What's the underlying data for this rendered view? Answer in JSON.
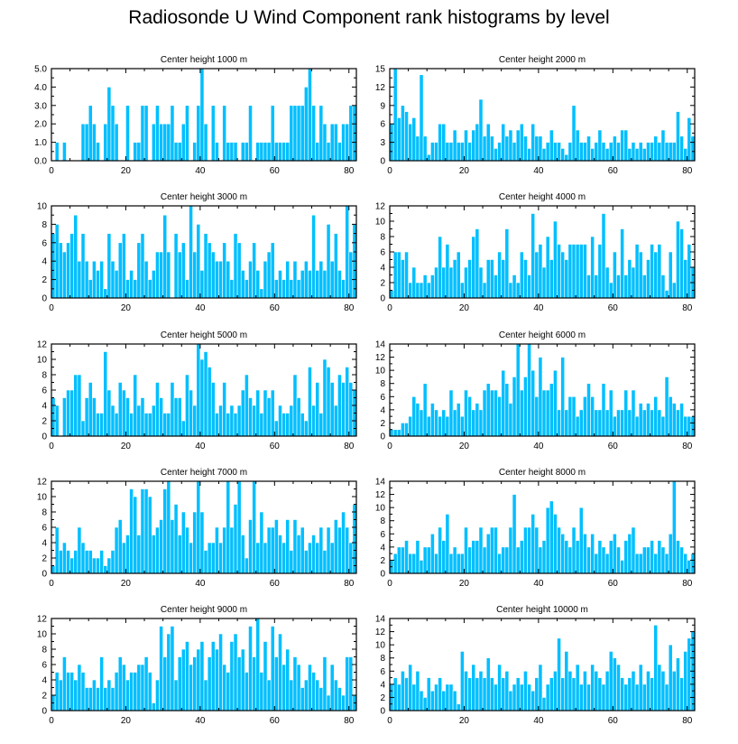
{
  "title": "Radiosonde U Wind Component rank histograms by level",
  "colors": {
    "bar": "#00bfff",
    "bar_edge": "#ffffff",
    "axis": "#000000"
  },
  "chart_data": [
    {
      "type": "bar",
      "title": "Center height 1000 m",
      "xlim": [
        0,
        82
      ],
      "ylim": [
        0,
        5
      ],
      "xticks": [
        0,
        20,
        40,
        60,
        80
      ],
      "yticks": [
        0,
        1,
        2,
        3,
        4,
        5
      ],
      "yticklabels": [
        "0.0",
        "1.0",
        "2.0",
        "3.0",
        "4.0",
        "5.0"
      ],
      "values": [
        0,
        1,
        0,
        1,
        0,
        0,
        0,
        0,
        2,
        2,
        3,
        2,
        1,
        0,
        2,
        4,
        3,
        2,
        0,
        0,
        3,
        0,
        1,
        1,
        3,
        3,
        0,
        2,
        3,
        2,
        2,
        2,
        3,
        1,
        1,
        2,
        3,
        0,
        1,
        3,
        5,
        2,
        0,
        3,
        1,
        0,
        3,
        1,
        1,
        1,
        0,
        1,
        1,
        3,
        0,
        1,
        1,
        1,
        1,
        3,
        1,
        1,
        1,
        1,
        3,
        3,
        3,
        3,
        4,
        5,
        3,
        1,
        3,
        2,
        1,
        2,
        2,
        1,
        2,
        2,
        3,
        3
      ]
    },
    {
      "type": "bar",
      "title": "Center height 2000 m",
      "xlim": [
        0,
        82
      ],
      "ylim": [
        0,
        15
      ],
      "xticks": [
        0,
        20,
        40,
        60,
        80
      ],
      "yticks": [
        0,
        3,
        6,
        9,
        12,
        15
      ],
      "yticklabels": [
        "0",
        "3",
        "6",
        "9",
        "12",
        "15"
      ],
      "values": [
        6,
        15,
        7,
        9,
        8,
        6,
        7,
        4,
        14,
        4,
        1,
        3,
        3,
        6,
        6,
        3,
        3,
        5,
        3,
        3,
        5,
        3,
        5,
        6,
        10,
        4,
        6,
        4,
        2,
        3,
        6,
        4,
        5,
        3,
        5,
        6,
        4,
        2,
        6,
        4,
        4,
        2,
        3,
        5,
        3,
        3,
        2,
        1,
        3,
        9,
        5,
        3,
        3,
        4,
        2,
        3,
        5,
        3,
        2,
        3,
        4,
        3,
        5,
        5,
        2,
        3,
        2,
        3,
        2,
        3,
        3,
        4,
        3,
        5,
        3,
        3,
        3,
        8,
        4,
        2,
        7,
        4
      ]
    },
    {
      "type": "bar",
      "title": "Center height 3000 m",
      "xlim": [
        0,
        82
      ],
      "ylim": [
        0,
        10
      ],
      "xticks": [
        0,
        20,
        40,
        60,
        80
      ],
      "yticks": [
        0,
        2,
        4,
        6,
        8,
        10
      ],
      "yticklabels": [
        "0",
        "2",
        "4",
        "6",
        "8",
        "10"
      ],
      "values": [
        7,
        8,
        6,
        5,
        6,
        7,
        9,
        4,
        7,
        4,
        2,
        4,
        3,
        4,
        1,
        7,
        4,
        3,
        6,
        7,
        2,
        3,
        2,
        6,
        7,
        4,
        2,
        3,
        5,
        5,
        9,
        5,
        0,
        7,
        5,
        6,
        2,
        10,
        5,
        8,
        3,
        7,
        6,
        5,
        4,
        4,
        6,
        4,
        2,
        7,
        6,
        3,
        2,
        4,
        6,
        3,
        1,
        4,
        5,
        6,
        2,
        3,
        2,
        4,
        2,
        4,
        2,
        3,
        4,
        3,
        9,
        3,
        4,
        3,
        8,
        4,
        7,
        3,
        2,
        10,
        5,
        8
      ]
    },
    {
      "type": "bar",
      "title": "Center height 4000 m",
      "xlim": [
        0,
        82
      ],
      "ylim": [
        0,
        12
      ],
      "xticks": [
        0,
        20,
        40,
        60,
        80
      ],
      "yticks": [
        0,
        2,
        4,
        6,
        8,
        10,
        12
      ],
      "yticklabels": [
        "0",
        "2",
        "4",
        "6",
        "8",
        "10",
        "12"
      ],
      "values": [
        1,
        6,
        6,
        5,
        6,
        2,
        4,
        2,
        2,
        3,
        2,
        3,
        4,
        8,
        4,
        7,
        4,
        5,
        6,
        2,
        4,
        5,
        8,
        9,
        4,
        2,
        5,
        5,
        3,
        6,
        5,
        9,
        2,
        3,
        2,
        6,
        5,
        3,
        11,
        6,
        7,
        4,
        8,
        5,
        10,
        7,
        6,
        5,
        7,
        7,
        7,
        7,
        7,
        3,
        8,
        3,
        7,
        11,
        4,
        2,
        6,
        3,
        9,
        3,
        5,
        4,
        7,
        6,
        3,
        5,
        7,
        6,
        7,
        3,
        1,
        6,
        2,
        10,
        9,
        5,
        7,
        4
      ]
    },
    {
      "type": "bar",
      "title": "Center height 5000 m",
      "xlim": [
        0,
        82
      ],
      "ylim": [
        0,
        12
      ],
      "xticks": [
        0,
        20,
        40,
        60,
        80
      ],
      "yticks": [
        0,
        2,
        4,
        6,
        8,
        10,
        12
      ],
      "yticklabels": [
        "0",
        "2",
        "4",
        "6",
        "8",
        "10",
        "12"
      ],
      "values": [
        5,
        4,
        0,
        5,
        6,
        6,
        8,
        8,
        2,
        5,
        7,
        5,
        3,
        3,
        11,
        6,
        4,
        3,
        7,
        6,
        5,
        3,
        8,
        4,
        5,
        3,
        3,
        4,
        7,
        5,
        3,
        3,
        7,
        5,
        5,
        2,
        8,
        6,
        4,
        12,
        10,
        11,
        9,
        7,
        3,
        4,
        7,
        3,
        4,
        3,
        4,
        6,
        8,
        5,
        4,
        6,
        3,
        6,
        5,
        6,
        2,
        4,
        3,
        3,
        4,
        8,
        5,
        3,
        2,
        9,
        4,
        7,
        3,
        10,
        9,
        7,
        4,
        8,
        7,
        9,
        7,
        6
      ]
    },
    {
      "type": "bar",
      "title": "Center height 6000 m",
      "xlim": [
        0,
        82
      ],
      "ylim": [
        0,
        14
      ],
      "xticks": [
        0,
        20,
        40,
        60,
        80
      ],
      "yticks": [
        0,
        2,
        4,
        6,
        8,
        10,
        12,
        14
      ],
      "yticklabels": [
        "0",
        "2",
        "4",
        "6",
        "8",
        "10",
        "12",
        "14"
      ],
      "values": [
        1,
        1,
        1,
        2,
        2,
        3,
        6,
        5,
        4,
        8,
        3,
        5,
        4,
        3,
        4,
        3,
        7,
        4,
        5,
        3,
        7,
        6,
        4,
        5,
        4,
        7,
        8,
        7,
        7,
        6,
        10,
        8,
        5,
        9,
        14,
        7,
        9,
        14,
        10,
        6,
        12,
        7,
        7,
        8,
        10,
        4,
        12,
        4,
        6,
        6,
        3,
        4,
        6,
        8,
        6,
        4,
        4,
        8,
        4,
        7,
        3,
        4,
        4,
        7,
        4,
        7,
        3,
        5,
        4,
        5,
        4,
        6,
        4,
        3,
        9,
        6,
        5,
        4,
        5,
        3,
        3,
        3
      ]
    },
    {
      "type": "bar",
      "title": "Center height 7000 m",
      "xlim": [
        0,
        82
      ],
      "ylim": [
        0,
        12
      ],
      "xticks": [
        0,
        20,
        40,
        60,
        80
      ],
      "yticks": [
        0,
        2,
        4,
        6,
        8,
        10,
        12
      ],
      "yticklabels": [
        "0",
        "2",
        "4",
        "6",
        "8",
        "10",
        "12"
      ],
      "values": [
        1,
        6,
        3,
        4,
        3,
        2,
        3,
        6,
        4,
        3,
        3,
        2,
        2,
        3,
        1,
        2,
        3,
        6,
        7,
        4,
        5,
        11,
        10,
        5,
        11,
        11,
        10,
        5,
        6,
        7,
        11,
        12,
        7,
        9,
        5,
        8,
        6,
        4,
        8,
        12,
        8,
        3,
        4,
        4,
        6,
        4,
        6,
        12,
        6,
        9,
        12,
        5,
        2,
        7,
        12,
        4,
        8,
        4,
        6,
        6,
        7,
        5,
        4,
        7,
        3,
        7,
        5,
        6,
        3,
        4,
        5,
        4,
        6,
        3,
        6,
        4,
        7,
        6,
        8,
        6,
        4,
        9
      ]
    },
    {
      "type": "bar",
      "title": "Center height 8000 m",
      "xlim": [
        0,
        82
      ],
      "ylim": [
        0,
        14
      ],
      "xticks": [
        0,
        20,
        40,
        60,
        80
      ],
      "yticks": [
        0,
        2,
        4,
        6,
        8,
        10,
        12,
        14
      ],
      "yticklabels": [
        "0",
        "2",
        "4",
        "6",
        "8",
        "10",
        "12",
        "14"
      ],
      "values": [
        2,
        3,
        4,
        4,
        5,
        3,
        3,
        5,
        2,
        4,
        4,
        6,
        3,
        7,
        5,
        9,
        3,
        4,
        3,
        3,
        7,
        4,
        5,
        5,
        7,
        4,
        6,
        7,
        7,
        3,
        4,
        4,
        7,
        12,
        4,
        5,
        7,
        7,
        9,
        7,
        4,
        5,
        10,
        11,
        9,
        7,
        6,
        5,
        4,
        7,
        5,
        10,
        6,
        4,
        6,
        3,
        5,
        4,
        3,
        5,
        6,
        4,
        2,
        5,
        6,
        7,
        3,
        3,
        4,
        4,
        5,
        3,
        5,
        4,
        3,
        6,
        14,
        5,
        4,
        3,
        2,
        3
      ]
    },
    {
      "type": "bar",
      "title": "Center height 9000 m",
      "xlim": [
        0,
        82
      ],
      "ylim": [
        0,
        12
      ],
      "xticks": [
        0,
        20,
        40,
        60,
        80
      ],
      "yticks": [
        0,
        2,
        4,
        6,
        8,
        10,
        12
      ],
      "yticklabels": [
        "0",
        "2",
        "4",
        "6",
        "8",
        "10",
        "12"
      ],
      "values": [
        2,
        5,
        4,
        7,
        5,
        5,
        4,
        6,
        5,
        3,
        3,
        4,
        3,
        7,
        3,
        4,
        3,
        5,
        7,
        6,
        4,
        5,
        5,
        6,
        6,
        7,
        5,
        1,
        4,
        11,
        7,
        10,
        11,
        4,
        7,
        8,
        9,
        6,
        7,
        8,
        9,
        4,
        7,
        9,
        8,
        10,
        6,
        5,
        9,
        10,
        7,
        8,
        5,
        11,
        7,
        12,
        5,
        9,
        4,
        11,
        7,
        10,
        6,
        8,
        4,
        7,
        6,
        3,
        4,
        6,
        5,
        4,
        3,
        7,
        2,
        6,
        4,
        3,
        2,
        7,
        7,
        2
      ]
    },
    {
      "type": "bar",
      "title": "Center height 10000 m",
      "xlim": [
        0,
        82
      ],
      "ylim": [
        0,
        14
      ],
      "xticks": [
        0,
        20,
        40,
        60,
        80
      ],
      "yticks": [
        0,
        2,
        4,
        6,
        8,
        10,
        12,
        14
      ],
      "yticklabels": [
        "0",
        "2",
        "4",
        "6",
        "8",
        "10",
        "12",
        "14"
      ],
      "values": [
        4,
        5,
        4,
        6,
        5,
        7,
        4,
        6,
        3,
        2,
        5,
        3,
        4,
        5,
        3,
        4,
        4,
        3,
        1,
        9,
        6,
        5,
        7,
        5,
        6,
        5,
        8,
        5,
        4,
        7,
        5,
        6,
        3,
        4,
        5,
        4,
        6,
        4,
        3,
        5,
        7,
        2,
        4,
        5,
        6,
        11,
        5,
        9,
        6,
        5,
        7,
        4,
        6,
        4,
        7,
        6,
        5,
        4,
        6,
        9,
        8,
        7,
        5,
        4,
        5,
        6,
        4,
        7,
        4,
        6,
        5,
        13,
        7,
        6,
        4,
        10,
        6,
        8,
        5,
        9,
        11,
        12
      ]
    }
  ]
}
